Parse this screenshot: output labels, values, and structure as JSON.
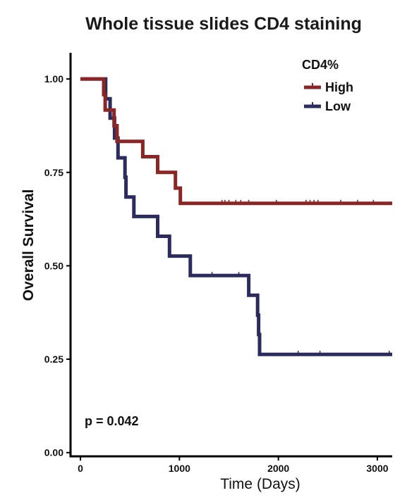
{
  "chart_data": {
    "type": "line",
    "subtype": "kaplan-meier",
    "title": "Whole tissue slides CD4 staining",
    "xlabel": "Time (Days)",
    "ylabel": "Overall Survival",
    "xlim": [
      -100,
      3150
    ],
    "ylim": [
      -0.01,
      1.07
    ],
    "xticks": [
      0,
      1000,
      2000,
      3000
    ],
    "xtick_labels": [
      "0",
      "1000",
      "2000",
      "3000"
    ],
    "yticks": [
      0,
      0.25,
      0.5,
      0.75,
      1.0
    ],
    "ytick_labels": [
      "0.00",
      "0.25",
      "0.50",
      "0.75",
      "1.00"
    ],
    "grid": false,
    "legend": {
      "title": "CD4%",
      "position": "top-right"
    },
    "annotation": "p = 0.042",
    "series": [
      {
        "name": "High",
        "color": "#8b2626",
        "steps": [
          [
            0,
            1.0
          ],
          [
            235,
            0.958
          ],
          [
            250,
            0.917
          ],
          [
            340,
            0.875
          ],
          [
            370,
            0.833
          ],
          [
            630,
            0.792
          ],
          [
            780,
            0.75
          ],
          [
            960,
            0.708
          ],
          [
            1010,
            0.667
          ],
          [
            3150,
            0.667
          ]
        ],
        "censored": [
          [
            1430,
            0.667
          ],
          [
            1460,
            0.667
          ],
          [
            1500,
            0.667
          ],
          [
            1570,
            0.667
          ],
          [
            1620,
            0.667
          ],
          [
            1700,
            0.667
          ],
          [
            1980,
            0.667
          ],
          [
            2280,
            0.667
          ],
          [
            2320,
            0.667
          ],
          [
            2360,
            0.667
          ],
          [
            2400,
            0.667
          ],
          [
            2630,
            0.667
          ],
          [
            2800,
            0.667
          ],
          [
            2960,
            0.667
          ]
        ]
      },
      {
        "name": "Low",
        "color": "#2b2b5e",
        "steps": [
          [
            0,
            1.0
          ],
          [
            255,
            0.947
          ],
          [
            300,
            0.895
          ],
          [
            345,
            0.842
          ],
          [
            380,
            0.789
          ],
          [
            450,
            0.737
          ],
          [
            460,
            0.684
          ],
          [
            540,
            0.632
          ],
          [
            780,
            0.579
          ],
          [
            900,
            0.526
          ],
          [
            1110,
            0.474
          ],
          [
            1700,
            0.421
          ],
          [
            1790,
            0.368
          ],
          [
            1800,
            0.316
          ],
          [
            1810,
            0.263
          ],
          [
            3150,
            0.263
          ]
        ],
        "censored": [
          [
            1330,
            0.474
          ],
          [
            1600,
            0.474
          ],
          [
            2200,
            0.263
          ],
          [
            2420,
            0.263
          ],
          [
            3120,
            0.263
          ]
        ]
      }
    ]
  }
}
